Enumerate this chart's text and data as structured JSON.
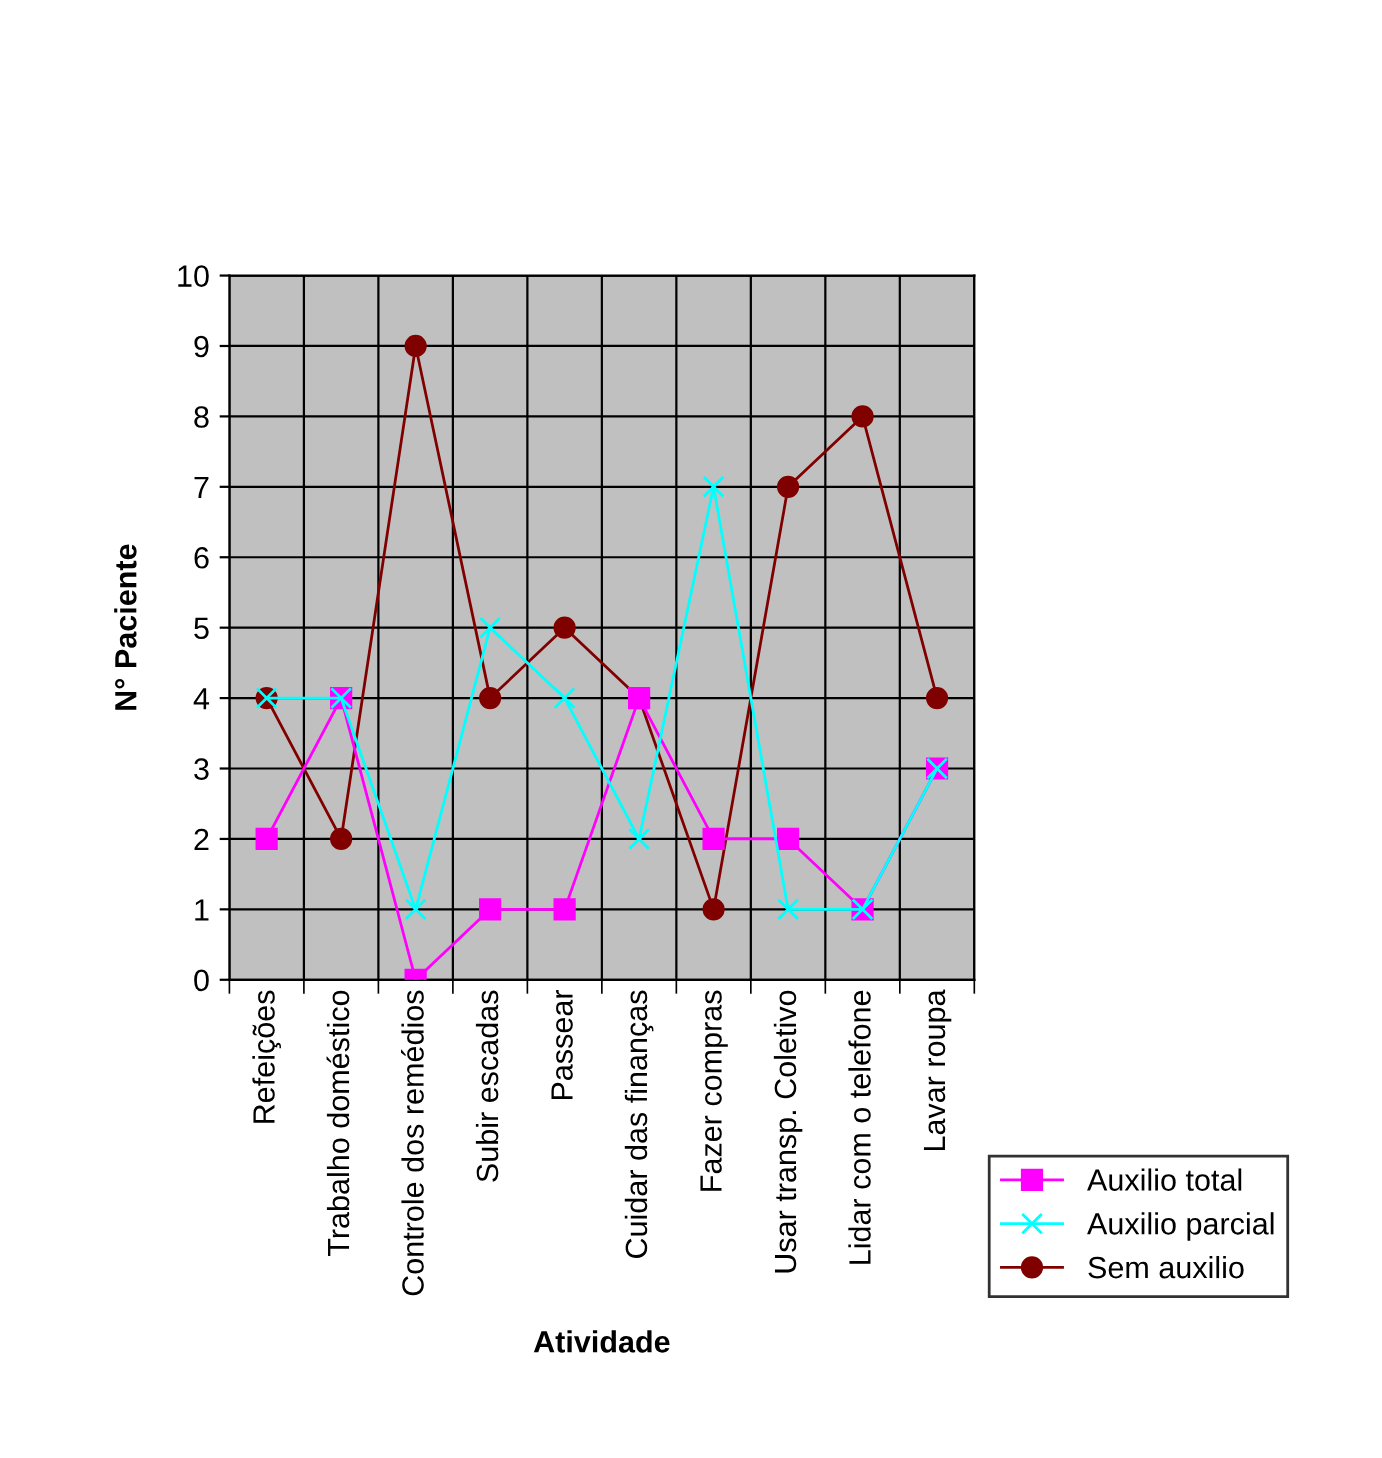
{
  "chart_data": {
    "type": "line",
    "xlabel": "Atividade",
    "ylabel": "N° Paciente",
    "categories": [
      "Refeições",
      "Trabalho doméstico",
      "Controle dos remédios",
      "Subir escadas",
      "Passear",
      "Cuidar das finanças",
      "Fazer compras",
      "Usar transp. Coletivo",
      "Lidar com o telefone",
      "Lavar roupa"
    ],
    "series": [
      {
        "name": "Auxilio total",
        "color": "#ff00ff",
        "marker": "square",
        "values": [
          2,
          4,
          0,
          1,
          1,
          4,
          2,
          2,
          1,
          3
        ]
      },
      {
        "name": "Auxilio parcial",
        "color": "#00ffff",
        "marker": "cross",
        "values": [
          4,
          4,
          1,
          5,
          4,
          2,
          7,
          1,
          1,
          3
        ]
      },
      {
        "name": "Sem auxilio",
        "color": "#800000",
        "marker": "circle",
        "values": [
          4,
          2,
          9,
          4,
          5,
          4,
          1,
          7,
          8,
          4
        ]
      }
    ],
    "ylim": [
      0,
      10
    ],
    "yticks": [
      0,
      1,
      2,
      3,
      4,
      5,
      6,
      7,
      8,
      9,
      10
    ],
    "grid": true,
    "legend": "bottom right"
  }
}
